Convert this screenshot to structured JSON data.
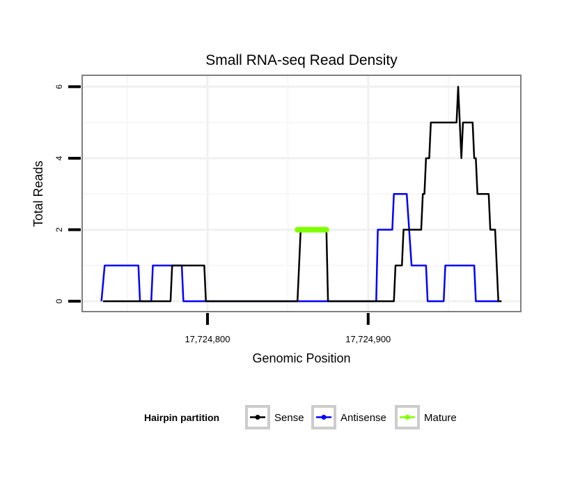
{
  "chart_data": {
    "type": "line",
    "title": "Small RNA-seq Read Density",
    "xlabel": "Genomic Position",
    "ylabel": "Total Reads",
    "xlim": [
      17724722,
      17724995
    ],
    "ylim": [
      -0.29,
      6.32
    ],
    "x_ticks": [
      17724800,
      17724900
    ],
    "x_tick_labels": [
      "17,724,800",
      "17,724,900"
    ],
    "x_minor_grid": [
      17724750,
      17724850,
      17724950
    ],
    "y_ticks": [
      0,
      2,
      4,
      6
    ],
    "y_tick_labels": [
      "0",
      "2",
      "4",
      "6"
    ],
    "y_minor_grid": [
      1,
      3,
      5
    ],
    "grid": true,
    "legend": {
      "title": "Hairpin partition",
      "placement": "bottom",
      "entries": [
        "Sense",
        "Antisense",
        "Mature"
      ]
    },
    "series": [
      {
        "name": "Sense",
        "color": "#000000",
        "x": [
          17724735,
          17724777,
          17724778,
          17724798,
          17724799,
          17724856,
          17724858,
          17724874,
          17724875,
          17724916,
          17724917,
          17724921,
          17724922,
          17724933,
          17724934,
          17724935,
          17724936,
          17724938,
          17724939,
          17724955,
          17724956,
          17724958,
          17724959,
          17724965,
          17724966,
          17724967,
          17724968,
          17724975,
          17724976,
          17724979,
          17724981,
          17724983
        ],
        "y": [
          0,
          0,
          1,
          1,
          0,
          0,
          2,
          2,
          0,
          0,
          1,
          1,
          2,
          2,
          3,
          3,
          4,
          4,
          5,
          5,
          6,
          4,
          5,
          5,
          4,
          4,
          3,
          3,
          2,
          2,
          0,
          0
        ]
      },
      {
        "name": "Antisense",
        "color": "#0000ff",
        "x": [
          17724734,
          17724736,
          17724757,
          17724758,
          17724765,
          17724766,
          17724784,
          17724785,
          17724905,
          17724906,
          17724915,
          17724916,
          17724924,
          17724927,
          17724936,
          17724937,
          17724947,
          17724948,
          17724966,
          17724967,
          17724981
        ],
        "y": [
          0,
          1,
          1,
          0,
          0,
          1,
          1,
          0,
          0,
          2,
          2,
          3,
          3,
          1,
          1,
          0,
          0,
          1,
          1,
          0,
          0
        ]
      },
      {
        "name": "Mature",
        "color": "#7fff00",
        "x": [
          17724856,
          17724874
        ],
        "y": [
          2,
          2
        ]
      }
    ]
  }
}
